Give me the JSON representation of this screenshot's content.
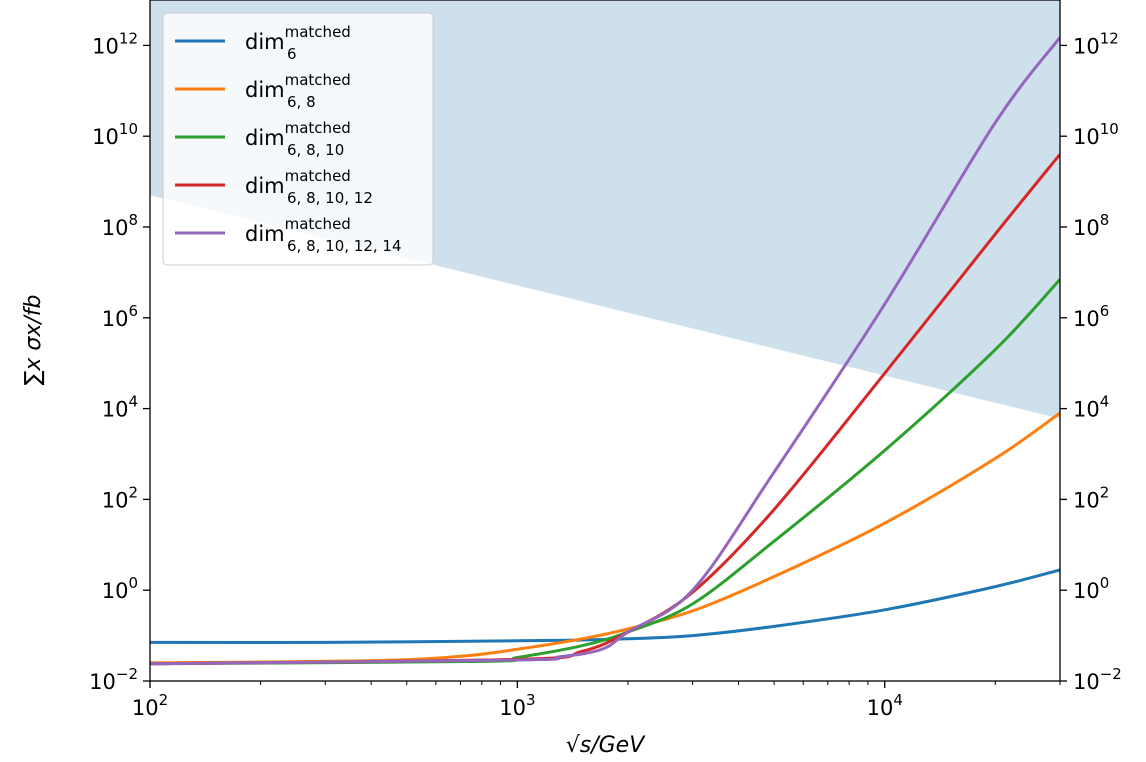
{
  "chart_data": {
    "type": "line",
    "xscale": "log",
    "yscale": "log",
    "xlim": [
      100,
      30000
    ],
    "ylim": [
      0.01,
      10000000000000.0
    ],
    "xlabel": "√s/GeV",
    "ylabel": "∑x σx/fb",
    "x_ticks": [
      {
        "value": 100,
        "base": "10",
        "exp": "2"
      },
      {
        "value": 1000,
        "base": "10",
        "exp": "3"
      },
      {
        "value": 10000,
        "base": "10",
        "exp": "4"
      }
    ],
    "y_ticks": [
      {
        "value": 0.01,
        "base": "10",
        "exp": "−2"
      },
      {
        "value": 1,
        "base": "10",
        "exp": "0"
      },
      {
        "value": 100,
        "base": "10",
        "exp": "2"
      },
      {
        "value": 10000,
        "base": "10",
        "exp": "4"
      },
      {
        "value": 1000000,
        "base": "10",
        "exp": "6"
      },
      {
        "value": 100000000,
        "base": "10",
        "exp": "8"
      },
      {
        "value": 10000000000,
        "base": "10",
        "exp": "10"
      },
      {
        "value": 1000000000000,
        "base": "10",
        "exp": "12"
      }
    ],
    "shaded_region": {
      "color": "#cfe0ed",
      "lower_boundary": [
        [
          100,
          500000000
        ],
        [
          30000,
          6000
        ]
      ]
    },
    "legend_position": "upper-left",
    "series": [
      {
        "name": "dim",
        "label_sup": "matched",
        "label_sub": "6",
        "color": "#1f77b4",
        "points": [
          [
            100,
            0.071
          ],
          [
            300,
            0.071
          ],
          [
            1000,
            0.077
          ],
          [
            1500,
            0.08
          ],
          [
            2000,
            0.085
          ],
          [
            3000,
            0.1
          ],
          [
            5000,
            0.16
          ],
          [
            10000,
            0.37
          ],
          [
            20000,
            1.2
          ],
          [
            30000,
            2.8
          ]
        ]
      },
      {
        "name": "dim",
        "label_sup": "matched",
        "label_sub": "6, 8",
        "color": "#ff7f0e",
        "points": [
          [
            100,
            0.025
          ],
          [
            400,
            0.028
          ],
          [
            700,
            0.035
          ],
          [
            1000,
            0.05
          ],
          [
            1500,
            0.085
          ],
          [
            2000,
            0.14
          ],
          [
            3000,
            0.35
          ],
          [
            5000,
            2
          ],
          [
            10000,
            30
          ],
          [
            20000,
            800
          ],
          [
            30000,
            8000
          ]
        ]
      },
      {
        "name": "dim",
        "label_sup": "matched",
        "label_sub": "6, 8, 10",
        "color": "#2ca02c",
        "points": [
          [
            100,
            0.024
          ],
          [
            800,
            0.027
          ],
          [
            1000,
            0.033
          ],
          [
            1500,
            0.06
          ],
          [
            2000,
            0.12
          ],
          [
            3000,
            0.5
          ],
          [
            5000,
            12
          ],
          [
            10000,
            1200
          ],
          [
            20000,
            200000
          ],
          [
            30000,
            7000000
          ]
        ]
      },
      {
        "name": "dim",
        "label_sup": "matched",
        "label_sub": "6, 8, 10, 12",
        "color": "#d62728",
        "points": [
          [
            100,
            0.024
          ],
          [
            1000,
            0.03
          ],
          [
            1500,
            0.045
          ],
          [
            2000,
            0.12
          ],
          [
            3000,
            0.9
          ],
          [
            5000,
            60
          ],
          [
            10000,
            60000
          ],
          [
            20000,
            70000000
          ],
          [
            30000,
            4000000000
          ]
        ]
      },
      {
        "name": "dim",
        "label_sup": "matched",
        "label_sub": "6, 8, 10, 12, 14",
        "color": "#9467bd",
        "points": [
          [
            100,
            0.024
          ],
          [
            1000,
            0.029
          ],
          [
            1300,
            0.034
          ],
          [
            1700,
            0.05
          ],
          [
            2000,
            0.12
          ],
          [
            3000,
            1
          ],
          [
            5000,
            400
          ],
          [
            10000,
            2000000
          ],
          [
            20000,
            20000000000
          ],
          [
            30000,
            1500000000000
          ]
        ]
      }
    ]
  }
}
